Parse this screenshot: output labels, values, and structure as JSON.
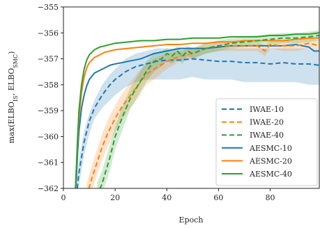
{
  "chart_data": {
    "type": "line",
    "title": "",
    "xlabel": "Epoch",
    "ylabel_main": "max(ELBO",
    "ylabel_sub1": "IS",
    "ylabel_sep": ", ELBO",
    "ylabel_sub2": "SMC",
    "ylabel_close": ")",
    "xlim": [
      0,
      99
    ],
    "ylim": [
      -362,
      -355
    ],
    "xticks": [
      0,
      20,
      40,
      60,
      80
    ],
    "xtick_labels": [
      "0",
      "20",
      "40",
      "60",
      "80"
    ],
    "yticks": [
      -362,
      -361,
      -360,
      -359,
      -358,
      -357,
      -356,
      -355
    ],
    "ytick_labels": [
      "−362",
      "−361",
      "−360",
      "−359",
      "−358",
      "−357",
      "−356",
      "−355"
    ],
    "grid": false,
    "legend_position": "lower-right",
    "series": [
      {
        "name": "IWAE-10",
        "color": "#1f77b4",
        "dash": true,
        "x": [
          5,
          6,
          8,
          10,
          12,
          15,
          18,
          20,
          24,
          28,
          32,
          36,
          40,
          45,
          50,
          55,
          60,
          65,
          70,
          75,
          80,
          85,
          90,
          95,
          99
        ],
        "y": [
          -362.3,
          -361.4,
          -360.2,
          -359.4,
          -358.9,
          -358.4,
          -358.0,
          -357.8,
          -357.5,
          -357.3,
          -357.2,
          -357.1,
          -357.05,
          -357.05,
          -357.0,
          -357.05,
          -357.1,
          -357.1,
          -357.15,
          -357.15,
          -357.2,
          -357.15,
          -357.2,
          -357.2,
          -357.25
        ],
        "band_upper": [
          -361.8,
          -360.9,
          -359.8,
          -359.1,
          -358.6,
          -358.0,
          -357.6,
          -357.4,
          -357.0,
          -356.8,
          -356.7,
          -356.6,
          -356.6,
          -356.6,
          -356.6,
          -356.6,
          -356.6,
          -356.6,
          -356.6,
          -356.6,
          -356.6,
          -356.6,
          -356.6,
          -356.6,
          -356.7
        ],
        "band_lower": [
          -362.3,
          -361.9,
          -360.7,
          -359.9,
          -359.3,
          -358.9,
          -358.6,
          -358.4,
          -358.1,
          -357.9,
          -357.8,
          -357.8,
          -357.8,
          -357.8,
          -357.7,
          -357.8,
          -357.8,
          -357.8,
          -357.9,
          -357.9,
          -357.9,
          -357.9,
          -357.9,
          -358.0,
          -358.0
        ]
      },
      {
        "name": "IWAE-20",
        "color": "#ff7f0e",
        "dash": true,
        "x": [
          9,
          11,
          13,
          15,
          17,
          20,
          23,
          26,
          29,
          32,
          35,
          40,
          45,
          50,
          55,
          60,
          65,
          70,
          75,
          78,
          80,
          85,
          90,
          95,
          99
        ],
        "y": [
          -362.3,
          -361.6,
          -361.0,
          -360.4,
          -359.9,
          -359.3,
          -358.8,
          -358.4,
          -358.0,
          -357.6,
          -357.4,
          -357.1,
          -356.9,
          -356.8,
          -356.6,
          -356.5,
          -356.5,
          -356.5,
          -356.5,
          -356.7,
          -356.45,
          -356.5,
          -356.5,
          -356.4,
          -356.5
        ],
        "band_upper": [
          -361.8,
          -361.1,
          -360.5,
          -359.9,
          -359.4,
          -358.8,
          -358.3,
          -357.9,
          -357.5,
          -357.2,
          -357.0,
          -356.8,
          -356.7,
          -356.6,
          -356.4,
          -356.3,
          -356.3,
          -356.3,
          -356.3,
          -356.5,
          -356.3,
          -356.3,
          -356.3,
          -356.2,
          -356.3
        ],
        "band_lower": [
          -362.3,
          -362.1,
          -361.5,
          -360.9,
          -360.4,
          -359.8,
          -359.3,
          -358.9,
          -358.5,
          -358.0,
          -357.8,
          -357.4,
          -357.1,
          -357.0,
          -356.8,
          -356.7,
          -356.7,
          -356.7,
          -356.7,
          -356.9,
          -356.6,
          -356.7,
          -356.7,
          -356.6,
          -356.7
        ]
      },
      {
        "name": "IWAE-40",
        "color": "#2ca02c",
        "dash": true,
        "x": [
          13,
          15,
          18,
          20,
          23,
          26,
          29,
          32,
          35,
          38,
          40,
          42,
          44,
          46,
          48,
          50,
          55,
          60,
          65,
          70,
          75,
          80,
          85,
          90,
          95,
          99
        ],
        "y": [
          -362.3,
          -361.8,
          -360.8,
          -360.0,
          -359.2,
          -358.5,
          -358.0,
          -357.5,
          -357.1,
          -357.0,
          -356.8,
          -356.9,
          -356.7,
          -356.9,
          -356.7,
          -356.8,
          -356.6,
          -356.5,
          -356.4,
          -356.35,
          -356.3,
          -356.25,
          -356.2,
          -356.2,
          -356.15,
          -356.1
        ],
        "band_upper": [
          -361.8,
          -361.3,
          -360.3,
          -359.6,
          -358.8,
          -358.1,
          -357.6,
          -357.1,
          -356.8,
          -356.7,
          -356.6,
          -356.7,
          -356.5,
          -356.7,
          -356.5,
          -356.6,
          -356.4,
          -356.3,
          -356.2,
          -356.15,
          -356.1,
          -356.05,
          -356.0,
          -356.0,
          -355.95,
          -355.9
        ],
        "band_lower": [
          -362.3,
          -362.2,
          -361.3,
          -360.5,
          -359.7,
          -358.9,
          -358.4,
          -357.9,
          -357.5,
          -357.3,
          -357.1,
          -357.2,
          -357.0,
          -357.2,
          -356.9,
          -357.0,
          -356.8,
          -356.7,
          -356.6,
          -356.55,
          -356.5,
          -356.45,
          -356.4,
          -356.4,
          -356.35,
          -356.3
        ]
      },
      {
        "name": "AESMC-10",
        "color": "#1f77b4",
        "dash": false,
        "x": [
          4.5,
          5,
          5.5,
          6,
          7,
          8,
          9,
          10,
          12,
          14,
          16,
          18,
          20,
          25,
          30,
          35,
          40,
          45,
          50,
          55,
          60,
          65,
          70,
          75,
          80,
          85,
          90,
          95,
          97,
          99
        ],
        "y": [
          -362.3,
          -361.6,
          -360.6,
          -359.8,
          -358.9,
          -358.4,
          -358.05,
          -357.8,
          -357.55,
          -357.45,
          -357.35,
          -357.25,
          -357.2,
          -357.1,
          -357.0,
          -356.8,
          -356.7,
          -356.6,
          -356.6,
          -356.6,
          -356.55,
          -356.5,
          -356.5,
          -356.5,
          -356.5,
          -356.5,
          -356.45,
          -356.55,
          -356.7,
          -356.7
        ]
      },
      {
        "name": "AESMC-20",
        "color": "#ff7f0e",
        "dash": false,
        "x": [
          4.5,
          5,
          5.5,
          6,
          7,
          8,
          9,
          10,
          12,
          14,
          16,
          18,
          20,
          25,
          30,
          35,
          40,
          45,
          50,
          55,
          60,
          65,
          70,
          75,
          80,
          85,
          90,
          95,
          99
        ],
        "y": [
          -362.3,
          -361.3,
          -360.2,
          -359.3,
          -358.3,
          -357.7,
          -357.35,
          -357.15,
          -356.95,
          -356.85,
          -356.75,
          -356.7,
          -356.65,
          -356.6,
          -356.55,
          -356.5,
          -356.45,
          -356.45,
          -356.4,
          -356.4,
          -356.35,
          -356.35,
          -356.3,
          -356.3,
          -356.3,
          -356.3,
          -356.25,
          -356.2,
          -356.2
        ]
      },
      {
        "name": "AESMC-40",
        "color": "#2ca02c",
        "dash": false,
        "x": [
          4.5,
          5,
          5.5,
          6,
          7,
          8,
          9,
          10,
          12,
          14,
          16,
          18,
          20,
          25,
          30,
          35,
          40,
          45,
          50,
          55,
          60,
          65,
          70,
          75,
          80,
          85,
          90,
          95,
          99
        ],
        "y": [
          -362.3,
          -361.2,
          -360.0,
          -359.0,
          -358.0,
          -357.4,
          -357.05,
          -356.85,
          -356.65,
          -356.55,
          -356.5,
          -356.45,
          -356.4,
          -356.35,
          -356.3,
          -356.3,
          -356.25,
          -356.25,
          -356.2,
          -356.2,
          -356.2,
          -356.15,
          -356.15,
          -356.15,
          -356.1,
          -356.1,
          -356.05,
          -356.05,
          -356.0
        ]
      }
    ]
  }
}
